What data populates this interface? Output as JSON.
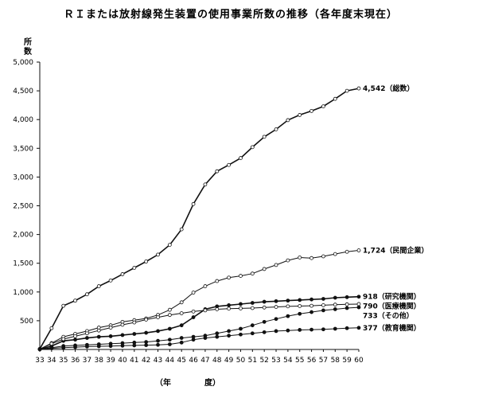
{
  "chart_data": {
    "type": "line",
    "title": "ＲＩまたは放射線発生装置の使用事業所数の推移（各年度末現在）",
    "ylabel": [
      "所",
      "数"
    ],
    "xlabel": [
      "（年",
      "度）"
    ],
    "ylim": [
      0,
      5000
    ],
    "yticks": [
      "5,000",
      "4,500",
      "4,000",
      "3,500",
      "3,000",
      "2,500",
      "2,000",
      "1,500",
      "1,000",
      "500"
    ],
    "ytick_values": [
      5000,
      4500,
      4000,
      3500,
      3000,
      2500,
      2000,
      1500,
      1000,
      500
    ],
    "x": [
      "33",
      "34",
      "35",
      "36",
      "37",
      "38",
      "39",
      "40",
      "41",
      "42",
      "43",
      "44",
      "45",
      "46",
      "47",
      "48",
      "49",
      "50",
      "51",
      "52",
      "53",
      "54",
      "55",
      "56",
      "57",
      "58",
      "59",
      "60"
    ],
    "grid": false,
    "series": [
      {
        "name": "4,542（総数）",
        "marker": "open",
        "values": [
          10,
          370,
          760,
          850,
          960,
          1100,
          1200,
          1310,
          1420,
          1530,
          1650,
          1820,
          2090,
          2530,
          2870,
          3100,
          3210,
          3330,
          3520,
          3700,
          3830,
          3990,
          4080,
          4150,
          4230,
          4360,
          4500,
          4542
        ]
      },
      {
        "name": "1,724（民間企業）",
        "marker": "open",
        "values": [
          5,
          110,
          220,
          270,
          320,
          380,
          420,
          480,
          510,
          540,
          600,
          690,
          820,
          990,
          1100,
          1190,
          1250,
          1280,
          1320,
          1400,
          1470,
          1550,
          1600,
          1590,
          1620,
          1660,
          1700,
          1724
        ]
      },
      {
        "name": "918（研究機関）",
        "marker": "filled",
        "values": [
          5,
          60,
          150,
          170,
          200,
          220,
          230,
          250,
          270,
          290,
          320,
          360,
          420,
          560,
          700,
          750,
          770,
          790,
          810,
          830,
          840,
          850,
          860,
          870,
          880,
          900,
          910,
          918
        ]
      },
      {
        "name": "790（医療機関）",
        "marker": "open",
        "values": [
          5,
          100,
          180,
          230,
          280,
          330,
          380,
          430,
          470,
          520,
          560,
          600,
          630,
          660,
          680,
          700,
          710,
          715,
          720,
          730,
          740,
          750,
          755,
          760,
          770,
          780,
          785,
          790
        ]
      },
      {
        "name": "733（その他）",
        "marker": "filled",
        "values": [
          3,
          30,
          60,
          70,
          80,
          90,
          100,
          110,
          120,
          130,
          150,
          170,
          200,
          220,
          240,
          280,
          320,
          360,
          420,
          480,
          530,
          580,
          620,
          650,
          680,
          700,
          720,
          733
        ]
      },
      {
        "name": "377（教育機関）",
        "marker": "filled",
        "values": [
          2,
          20,
          30,
          40,
          50,
          55,
          60,
          65,
          70,
          75,
          80,
          90,
          120,
          170,
          200,
          220,
          240,
          260,
          280,
          300,
          320,
          330,
          340,
          345,
          350,
          360,
          370,
          377
        ]
      }
    ]
  }
}
